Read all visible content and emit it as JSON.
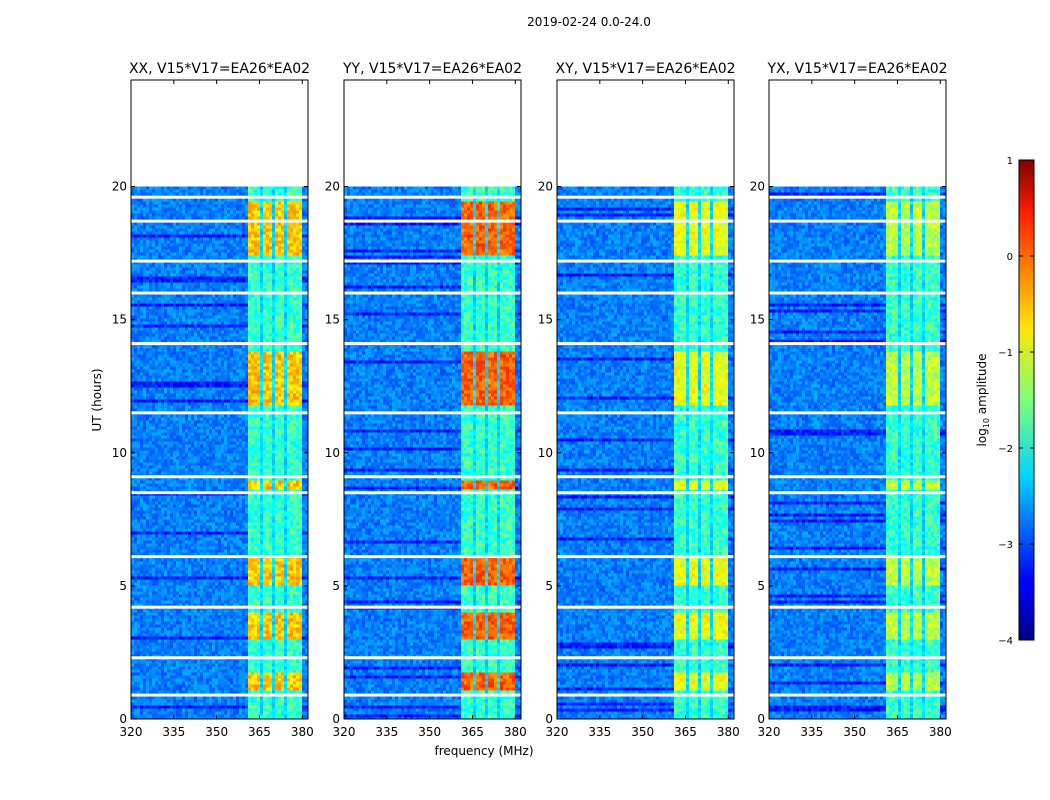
{
  "chart_data": {
    "type": "heatmap",
    "suptitle": "2019-02-24 0.0-24.0",
    "xlabel": "frequency (MHz)",
    "ylabel": "UT (hours)",
    "xlim": [
      320,
      382
    ],
    "ylim": [
      0,
      24
    ],
    "xticks": [
      320,
      335,
      350,
      365,
      380
    ],
    "yticks": [
      0,
      5,
      10,
      15,
      20
    ],
    "panels": [
      {
        "title": "XX, V15*V17=EA26*EA02"
      },
      {
        "title": "YY, V15*V17=EA26*EA02"
      },
      {
        "title": "XY, V15*V17=EA26*EA02"
      },
      {
        "title": "YX, V15*V17=EA26*EA02"
      }
    ],
    "data_extent_hours": [
      0,
      20
    ],
    "bright_band_mhz": [
      361.5,
      379.5
    ],
    "bright_blocks_mhz": [
      [
        361.5,
        365.5
      ],
      [
        366.5,
        369.5
      ],
      [
        370.5,
        374.0
      ],
      [
        375.0,
        379.5
      ]
    ],
    "bright_hours": [
      [
        1.1,
        1.7
      ],
      [
        3.0,
        4.0
      ],
      [
        5.0,
        6.1
      ],
      [
        8.6,
        9.0
      ],
      [
        11.8,
        13.8
      ],
      [
        17.4,
        19.4
      ]
    ],
    "gaps_hours": [
      0.9,
      2.3,
      4.2,
      6.1,
      8.5,
      9.1,
      11.5,
      14.1,
      16.0,
      17.2,
      18.7,
      19.6
    ],
    "colorbar": {
      "label": "log10 amplitude",
      "label_base": "log",
      "label_sub": "10",
      "label_rest": " amplitude",
      "range": [
        -4,
        1
      ],
      "ticks": [
        "1",
        "0",
        "−1",
        "−2",
        "−3",
        "−4"
      ],
      "colormap": "jet"
    }
  }
}
